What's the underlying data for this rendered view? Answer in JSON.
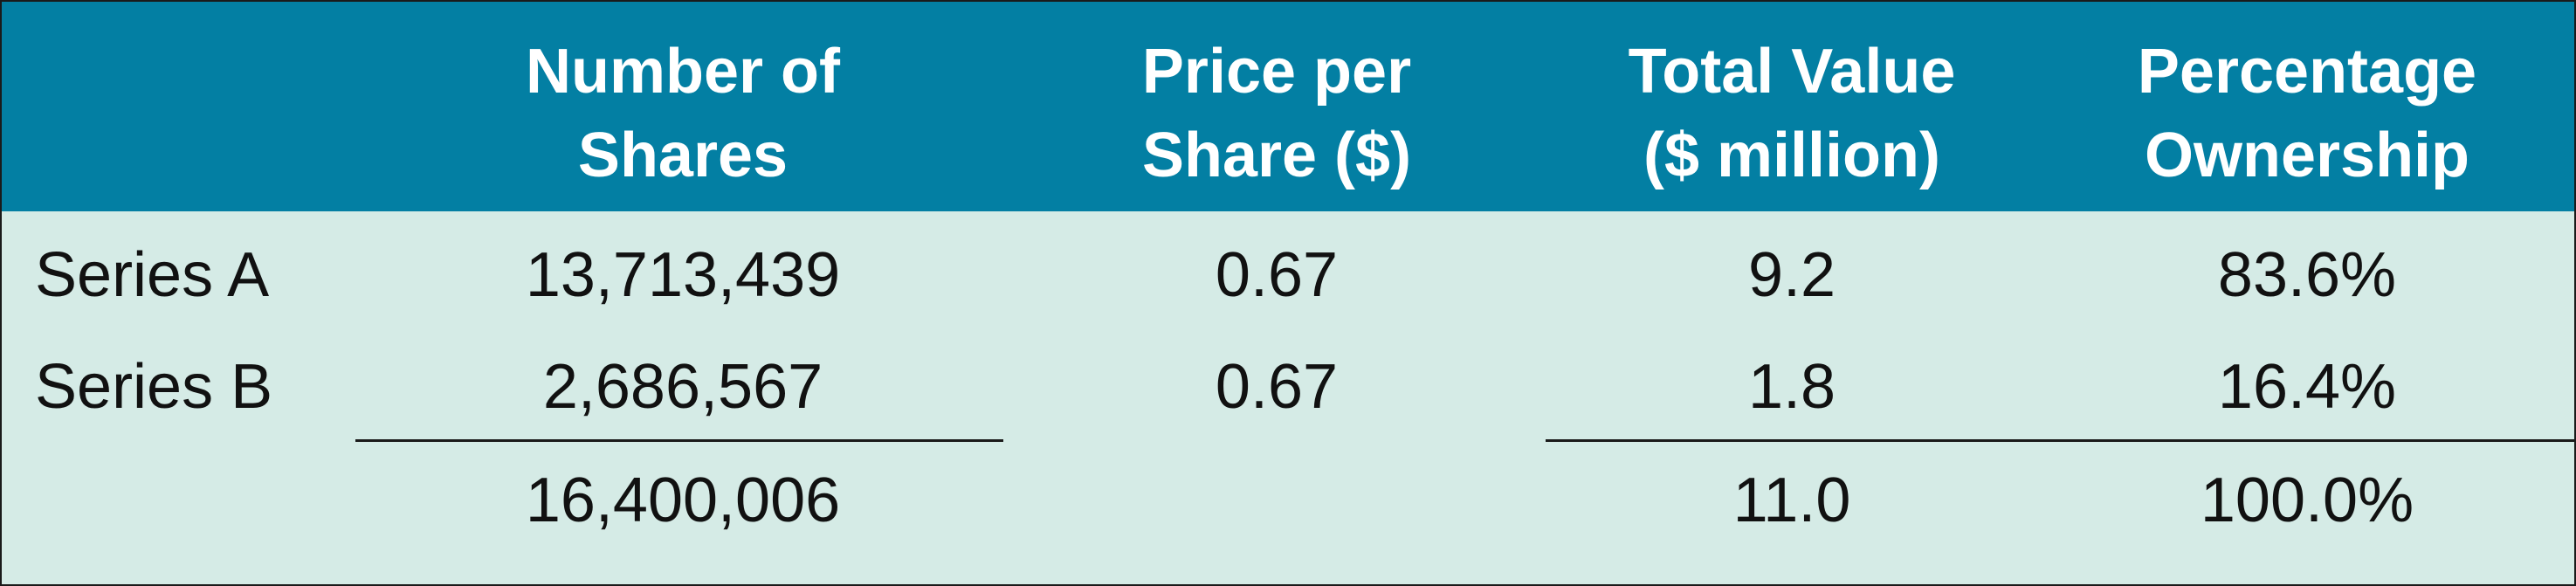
{
  "table": {
    "headers": [
      {
        "line1": "",
        "line2": ""
      },
      {
        "line1": "Number of",
        "line2": "Shares"
      },
      {
        "line1": "Price per",
        "line2": "Share ($)"
      },
      {
        "line1": "Total Value",
        "line2": "($ million)"
      },
      {
        "line1": "Percentage",
        "line2": "Ownership"
      }
    ],
    "rows": [
      {
        "label": "Series A",
        "shares": "13,713,439",
        "price": "0.67",
        "value": "9.2",
        "pct": "83.6%"
      },
      {
        "label": "Series B",
        "shares": "2,686,567",
        "price": "0.67",
        "value": "1.8",
        "pct": "16.4%"
      }
    ],
    "total": {
      "label": "",
      "shares": "16,400,006",
      "price": "",
      "value": "11.0",
      "pct": "100.0%"
    }
  },
  "colors": {
    "header_bg": "#037fa3",
    "header_text": "#ffffff",
    "body_bg": "#d5ebe6",
    "text": "#111111"
  }
}
